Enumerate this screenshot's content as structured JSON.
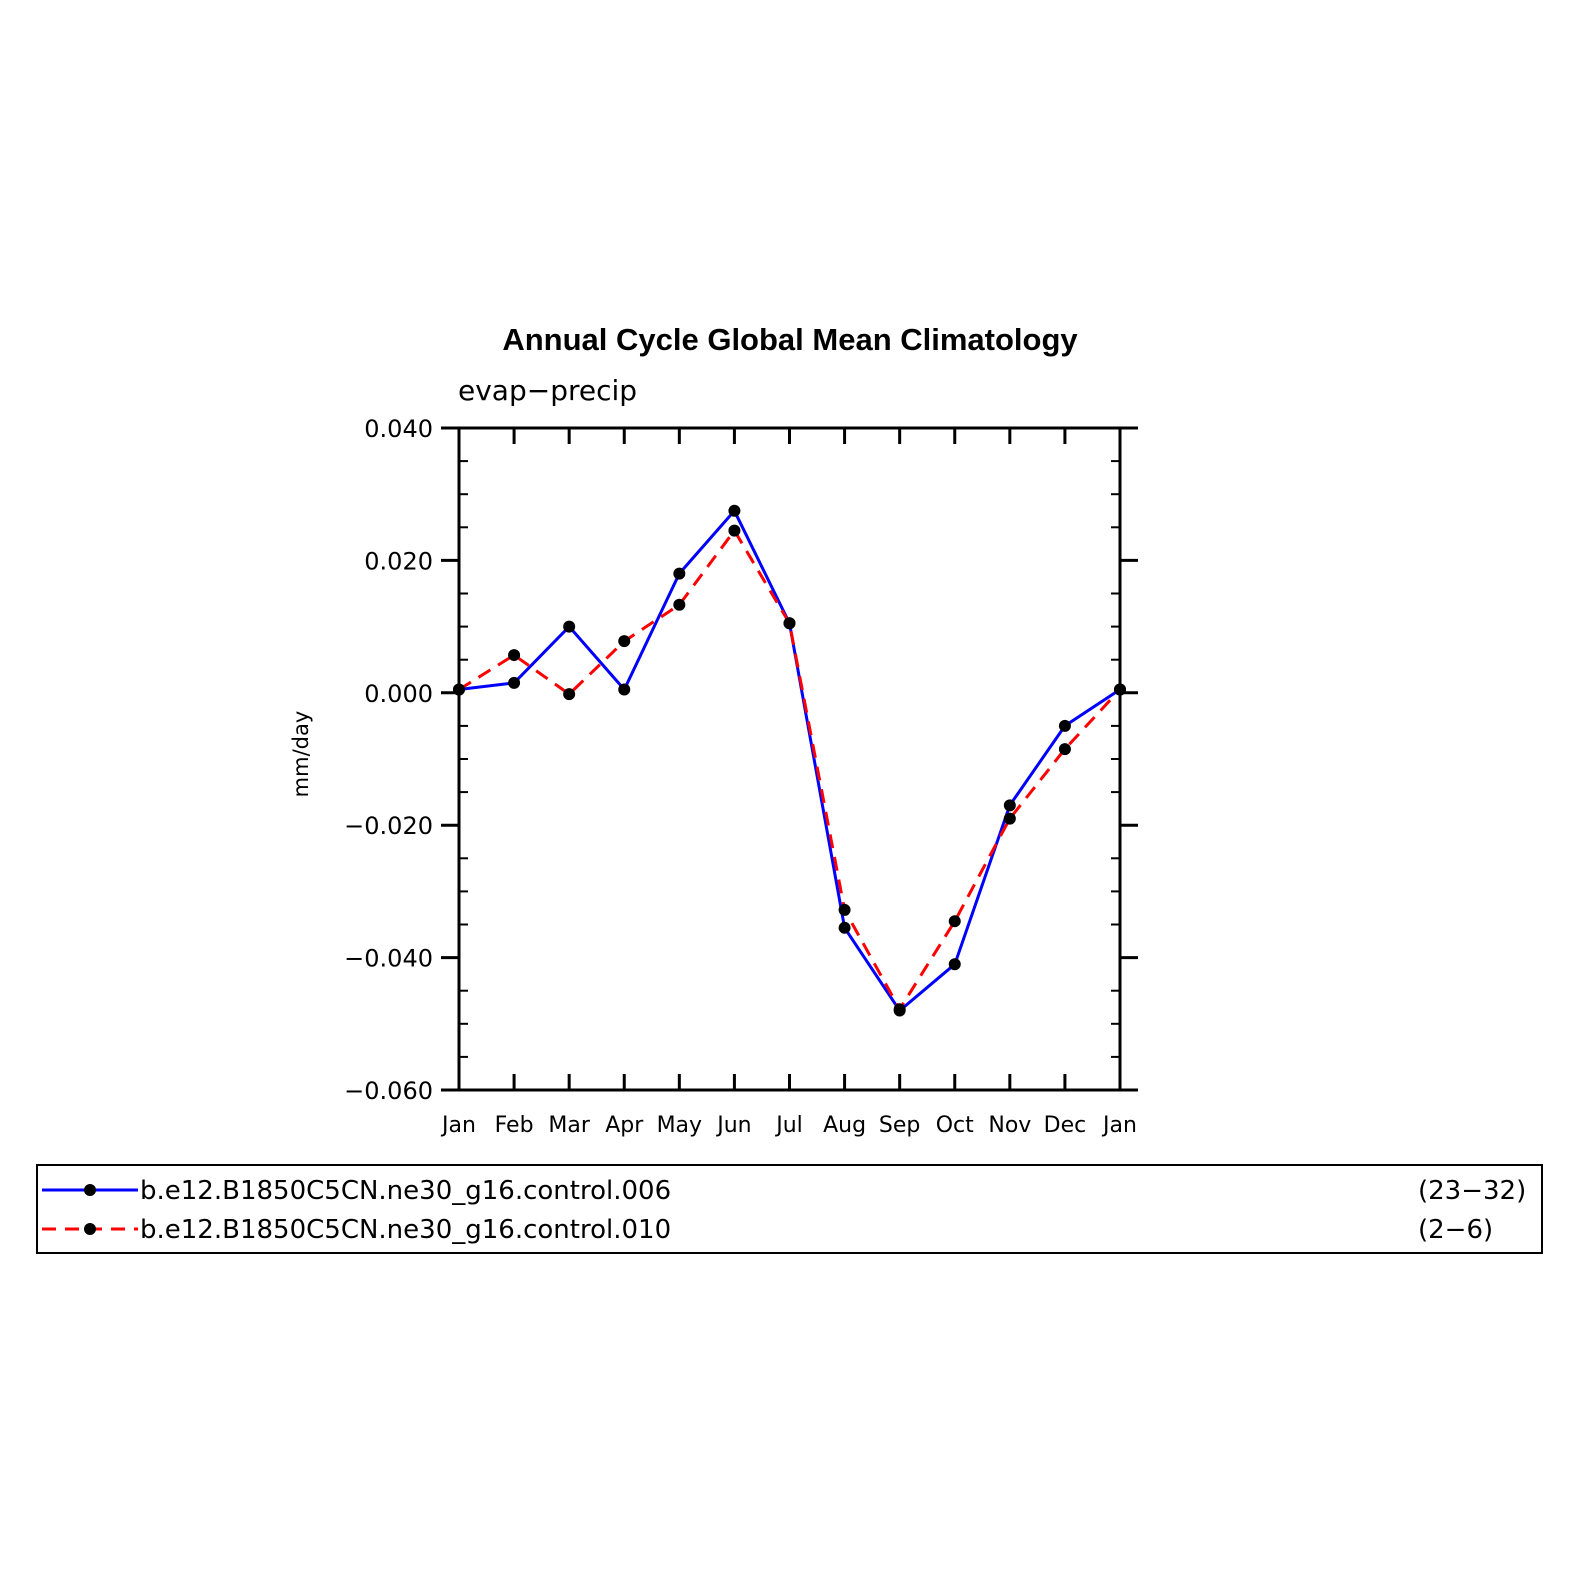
{
  "chart_data": {
    "type": "line",
    "title": "Annual Cycle Global Mean Climatology",
    "subtitle": "evap−precip",
    "ylabel": "mm/day",
    "xlabel": "",
    "categories": [
      "Jan",
      "Feb",
      "Mar",
      "Apr",
      "May",
      "Jun",
      "Jul",
      "Aug",
      "Sep",
      "Oct",
      "Nov",
      "Dec",
      "Jan"
    ],
    "ylim": [
      -0.06,
      0.04
    ],
    "yticks": [
      "0.040",
      "0.020",
      "0.000",
      "−0.020",
      "−0.040",
      "−0.060"
    ],
    "ytick_values": [
      0.04,
      0.02,
      0.0,
      -0.02,
      -0.04,
      -0.06
    ],
    "grid": false,
    "legend_position": "bottom",
    "series": [
      {
        "name": "b.e12.B1850C5CN.ne30_g16.control.006",
        "years": "(23−32)",
        "color": "#0000ff",
        "style": "solid",
        "values": [
          0.0005,
          0.0015,
          0.01,
          0.0005,
          0.018,
          0.0275,
          0.0105,
          -0.0355,
          -0.048,
          -0.041,
          -0.017,
          -0.005,
          0.0005
        ]
      },
      {
        "name": "b.e12.B1850C5CN.ne30_g16.control.010",
        "years": "(2−6)",
        "color": "#ff0000",
        "style": "dashed",
        "values": [
          0.0005,
          0.0057,
          -0.0002,
          0.0078,
          0.0133,
          0.0245,
          0.0105,
          -0.0328,
          -0.0478,
          -0.0345,
          -0.019,
          -0.0085,
          0.0005
        ]
      }
    ]
  }
}
